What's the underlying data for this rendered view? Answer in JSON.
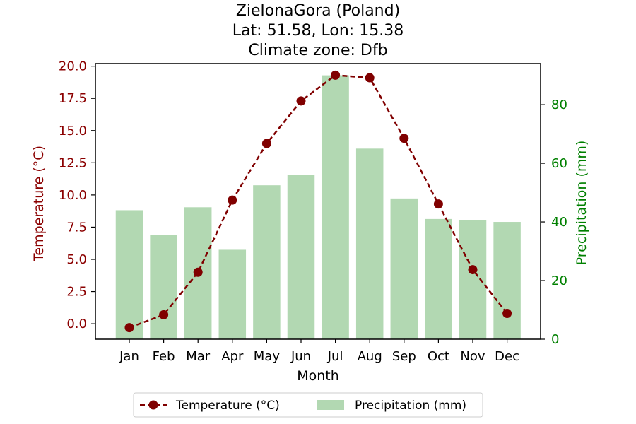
{
  "chart_data": {
    "type": "bar+line",
    "title_lines": [
      "ZielonaGora (Poland)",
      "Lat: 51.58, Lon: 15.38",
      "Climate zone: Dfb"
    ],
    "categories": [
      "Jan",
      "Feb",
      "Mar",
      "Apr",
      "May",
      "Jun",
      "Jul",
      "Aug",
      "Sep",
      "Oct",
      "Nov",
      "Dec"
    ],
    "xlabel": "Month",
    "ylabel_left": "Temperature (°C)",
    "ylabel_right": "Precipitation (mm)",
    "left_axis": {
      "ylim": [
        -1.2,
        20.2
      ],
      "ticks": [
        "0.0",
        "2.5",
        "5.0",
        "7.5",
        "10.0",
        "12.5",
        "15.0",
        "17.5",
        "20.0"
      ],
      "color": "#8b0000"
    },
    "right_axis": {
      "ylim": [
        0,
        94
      ],
      "ticks": [
        "0",
        "20",
        "40",
        "60",
        "80"
      ],
      "color": "#008000"
    },
    "series": [
      {
        "name": "Temperature (°C)",
        "kind": "line",
        "axis": "left",
        "color": "#800000",
        "values": [
          -0.3,
          0.7,
          4.0,
          9.6,
          14.0,
          17.3,
          19.3,
          19.1,
          14.4,
          9.3,
          4.2,
          0.8
        ]
      },
      {
        "name": "Precipitation (mm)",
        "kind": "bar",
        "axis": "right",
        "color": "#b2d8b2",
        "values": [
          44,
          35.5,
          45,
          30.5,
          52.5,
          56,
          90,
          65,
          48,
          41,
          40.5,
          40
        ]
      }
    ],
    "legend_position": "bottom-center",
    "grid": false
  }
}
